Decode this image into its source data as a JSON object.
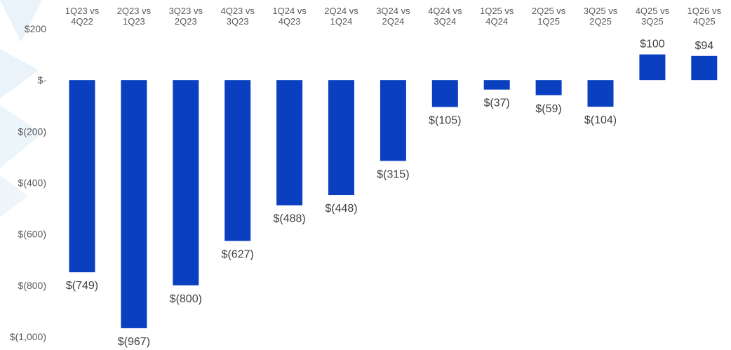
{
  "chart_data": {
    "type": "bar",
    "categories": [
      "1Q23 vs 4Q22",
      "2Q23 vs 1Q23",
      "3Q23 vs 2Q23",
      "4Q23 vs 3Q23",
      "1Q24 vs 4Q23",
      "2Q24 vs 1Q24",
      "3Q24 vs 2Q24",
      "4Q24 vs 3Q24",
      "1Q25 vs 4Q24",
      "2Q25 vs 1Q25",
      "3Q25 vs 2Q25",
      "4Q25 vs 3Q25",
      "1Q26 vs 4Q25"
    ],
    "category_lines": [
      [
        "1Q23 vs",
        "4Q22"
      ],
      [
        "2Q23 vs",
        "1Q23"
      ],
      [
        "3Q23 vs",
        "2Q23"
      ],
      [
        "4Q23 vs",
        "3Q23"
      ],
      [
        "1Q24 vs",
        "4Q23"
      ],
      [
        "2Q24 vs",
        "1Q24"
      ],
      [
        "3Q24 vs",
        "2Q24"
      ],
      [
        "4Q24 vs",
        "3Q24"
      ],
      [
        "1Q25 vs",
        "4Q24"
      ],
      [
        "2Q25 vs",
        "1Q25"
      ],
      [
        "3Q25 vs",
        "2Q25"
      ],
      [
        "4Q25 vs",
        "3Q25"
      ],
      [
        "1Q26 vs",
        "4Q25"
      ]
    ],
    "values": [
      -749,
      -967,
      -800,
      -627,
      -488,
      -448,
      -315,
      -105,
      -37,
      -59,
      -104,
      100,
      94
    ],
    "data_labels": [
      "$(749)",
      "$(967)",
      "$(800)",
      "$(627)",
      "$(488)",
      "$(448)",
      "$(315)",
      "$(105)",
      "$(37)",
      "$(59)",
      "$(104)",
      "$100",
      "$94"
    ],
    "ylim": [
      -1000,
      200
    ],
    "yticks": [
      200,
      0,
      -200,
      -400,
      -600,
      -800,
      -1000
    ],
    "ytick_labels": [
      "$200",
      "$-",
      "$(200)",
      "$(400)",
      "$(600)",
      "$(800)",
      "$(1,000)"
    ],
    "category_axis_position": "top",
    "grid": false,
    "legend": "none",
    "bar_color": "#0a3fbf",
    "title": "",
    "xlabel": "",
    "ylabel": ""
  },
  "background": {
    "watermark_color": "#dfeef7"
  }
}
